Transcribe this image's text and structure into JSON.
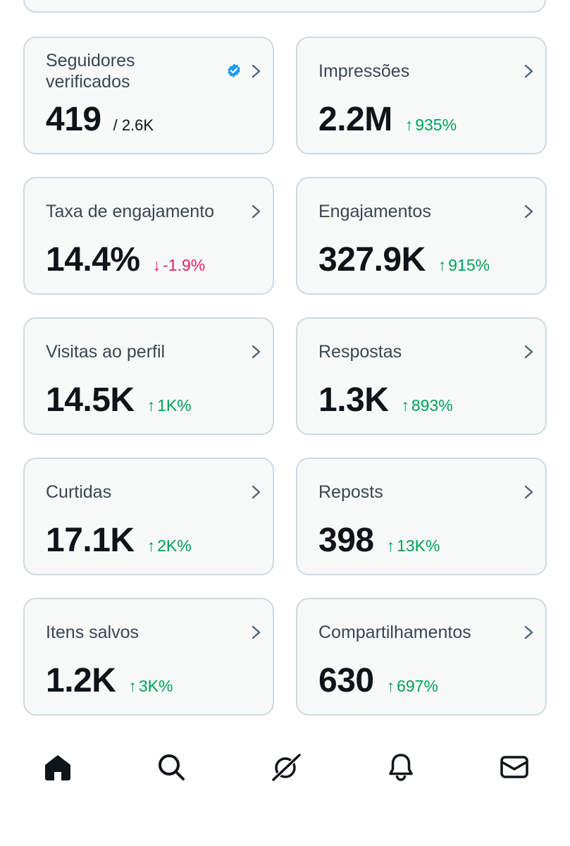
{
  "cards": [
    {
      "label": "Seguidores verificados",
      "value": "419",
      "sub": "/ 2.6K",
      "verified": true
    },
    {
      "label": "Impressões",
      "value": "2.2M",
      "delta": "935%",
      "dir": "up"
    },
    {
      "label": "Taxa de engajamento",
      "value": "14.4%",
      "delta": "-1.9%",
      "dir": "down"
    },
    {
      "label": "Engajamentos",
      "value": "327.9K",
      "delta": "915%",
      "dir": "up"
    },
    {
      "label": "Visitas ao perfil",
      "value": "14.5K",
      "delta": "1K%",
      "dir": "up"
    },
    {
      "label": "Respostas",
      "value": "1.3K",
      "delta": "893%",
      "dir": "up"
    },
    {
      "label": "Curtidas",
      "value": "17.1K",
      "delta": "2K%",
      "dir": "up"
    },
    {
      "label": "Reposts",
      "value": "398",
      "delta": "13K%",
      "dir": "up"
    },
    {
      "label": "Itens salvos",
      "value": "1.2K",
      "delta": "3K%",
      "dir": "up"
    },
    {
      "label": "Compartilhamentos",
      "value": "630",
      "delta": "697%",
      "dir": "up"
    }
  ],
  "colors": {
    "up": "#00a05a",
    "down": "#e0245e",
    "verified": "#1d9bf0",
    "card_border": "#cfd9de",
    "card_bg": "#f7f9f9"
  },
  "nav": [
    {
      "icon": "home-icon"
    },
    {
      "icon": "search-icon"
    },
    {
      "icon": "grok-icon"
    },
    {
      "icon": "notifications-bell-icon"
    },
    {
      "icon": "messages-envelope-icon"
    }
  ]
}
